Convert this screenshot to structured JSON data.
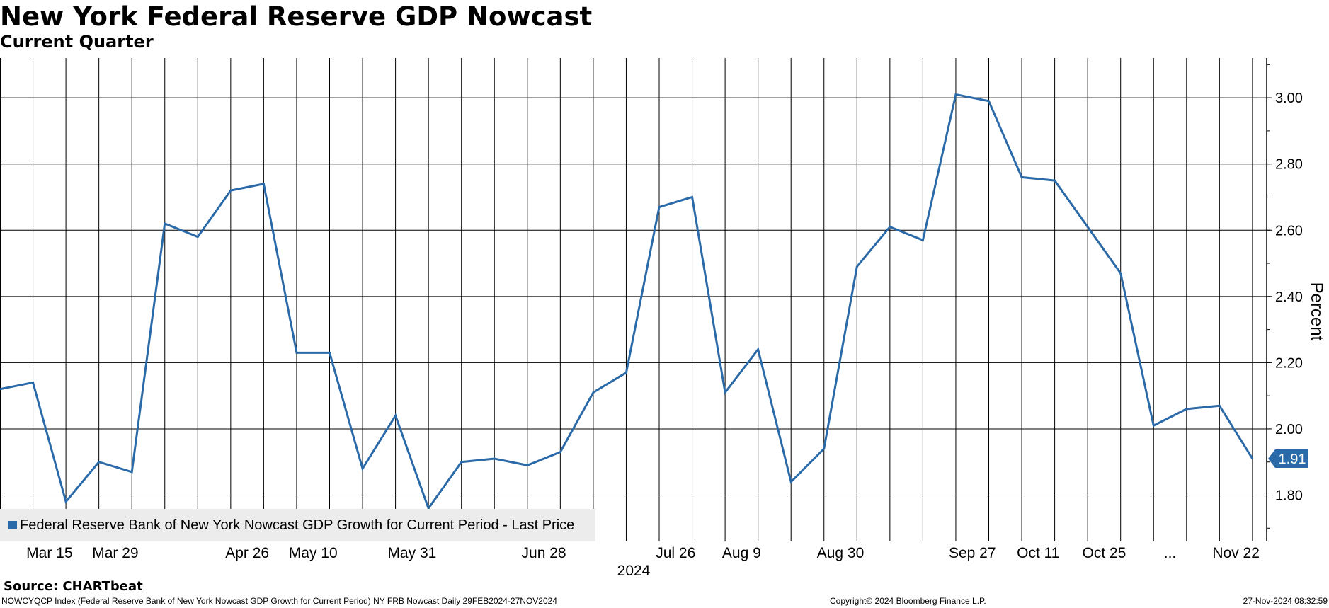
{
  "header": {
    "title": "New York Federal Reserve GDP Nowcast",
    "subtitle": "Current Quarter"
  },
  "chart_data": {
    "type": "line",
    "ylabel": "Percent",
    "xlabel_year": "2024",
    "ylim": [
      1.66,
      3.12
    ],
    "y_ticks": [
      1.8,
      2.0,
      2.2,
      2.4,
      2.6,
      2.8,
      3.0
    ],
    "y_tick_labels": [
      "1.80",
      "2.00",
      "2.20",
      "2.40",
      "2.60",
      "2.80",
      "3.00"
    ],
    "grid": true,
    "x_ticks": [
      "Mar 15",
      "Mar 29",
      "Apr 26",
      "May 10",
      "May 31",
      "Jun 28",
      "Jul 26",
      "Aug 9",
      "Aug 30",
      "Sep 27",
      "Oct 11",
      "Oct 25",
      "...",
      "Nov 22"
    ],
    "x_tick_weeks": [
      1.5,
      3.5,
      7.5,
      9.5,
      12.5,
      16.5,
      20.5,
      22.5,
      25.5,
      29.5,
      31.5,
      33.5,
      35.5,
      37.5
    ],
    "series": [
      {
        "name": "Federal Reserve Bank of New York Nowcast GDP Growth for Current Period - Last Price",
        "color": "#2b6aa8",
        "last_value_label": "1.91",
        "values": [
          2.12,
          2.14,
          1.78,
          1.9,
          1.87,
          2.62,
          2.58,
          2.72,
          2.74,
          2.23,
          2.23,
          1.88,
          2.04,
          1.76,
          1.9,
          1.91,
          1.89,
          1.93,
          2.11,
          2.17,
          2.67,
          2.7,
          2.11,
          2.24,
          1.84,
          1.94,
          2.49,
          2.61,
          2.57,
          3.01,
          2.99,
          2.76,
          2.75,
          2.61,
          2.47,
          2.01,
          2.06,
          2.07,
          1.91
        ]
      }
    ]
  },
  "footer": {
    "source": "Source: CHARTbeat",
    "left": "NOWCYQCP Index (Federal Reserve Bank of New York Nowcast GDP Growth for Current Period) NY FRB Nowcast  Daily 29FEB2024-27NOV2024",
    "middle": "Copyright© 2024 Bloomberg Finance L.P.",
    "right": "27-Nov-2024 08:32:59"
  }
}
